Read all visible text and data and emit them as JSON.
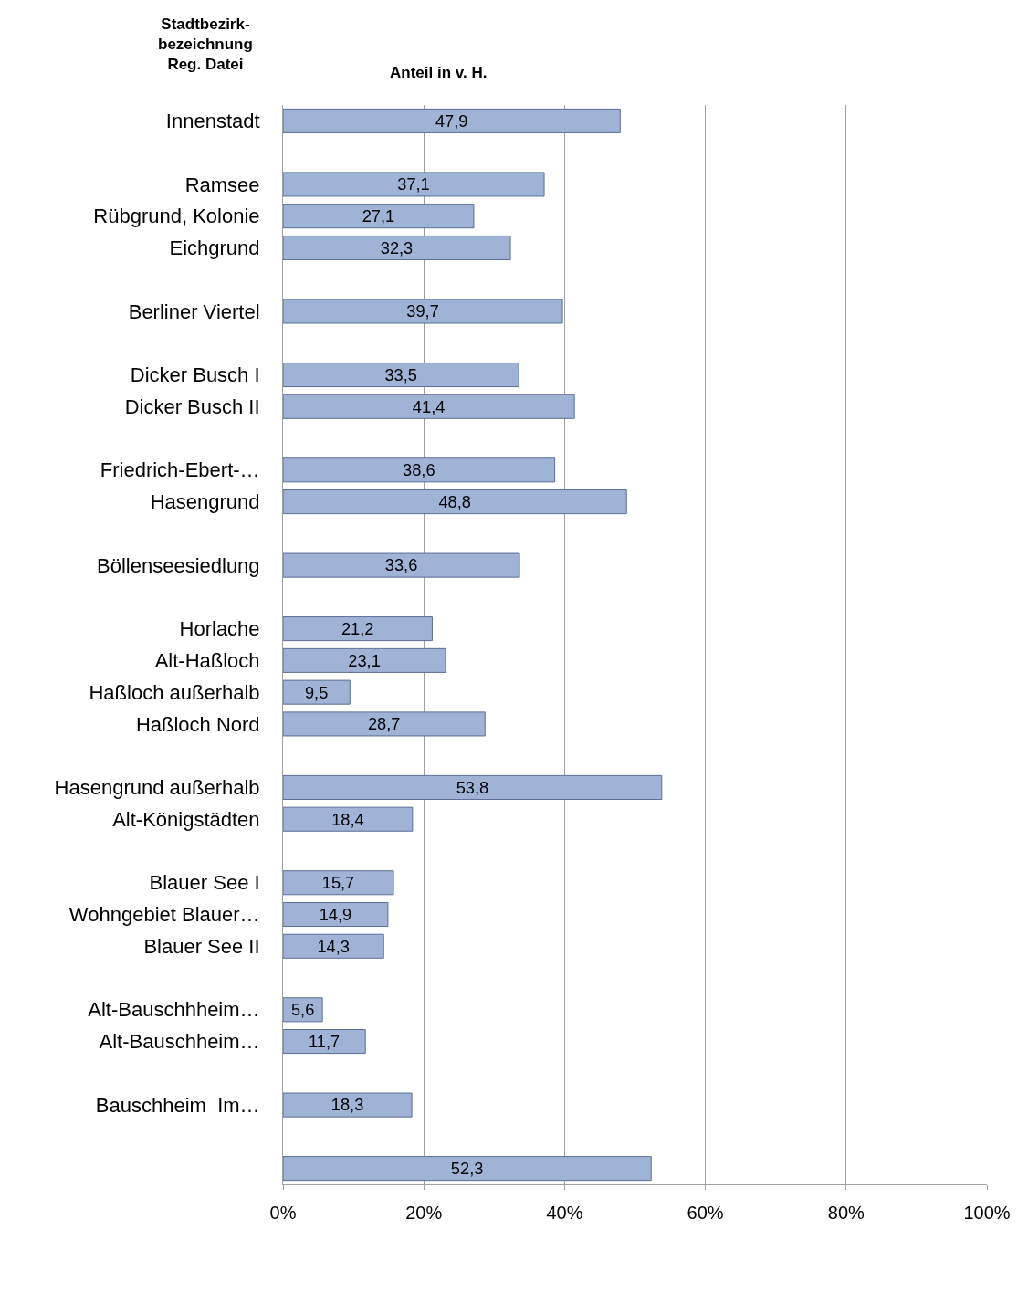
{
  "chart_data": {
    "type": "bar",
    "orientation": "horizontal",
    "ylabel": "Stadtbezirk-\nbezeichnung\nReg. Datei",
    "xlabel": "Anteil in v. H.",
    "categories": [
      "Innenstadt",
      null,
      "Ramsee",
      "Rübgrund, Kolonie",
      "Eichgrund",
      null,
      "Berliner Viertel",
      null,
      "Dicker Busch I",
      "Dicker Busch II",
      null,
      "Friedrich-Ebert-…",
      "Hasengrund",
      null,
      "Böllenseesiedlung",
      null,
      "Horlache",
      "Alt-Haßloch",
      "Haßloch außerhalb",
      "Haßloch Nord",
      null,
      "Hasengrund außerhalb",
      "Alt-Königstädten",
      null,
      "Blauer See I",
      "Wohngebiet Blauer…",
      "Blauer See II",
      null,
      "Alt-Bauschhheim…",
      "Alt-Bauschheim…",
      null,
      "Bauschheim  Im…",
      null,
      null
    ],
    "values": [
      47.9,
      null,
      37.1,
      27.1,
      32.3,
      null,
      39.7,
      null,
      33.5,
      41.4,
      null,
      38.6,
      48.8,
      null,
      33.6,
      null,
      21.2,
      23.1,
      9.5,
      28.7,
      null,
      53.8,
      18.4,
      null,
      15.7,
      14.9,
      14.3,
      null,
      5.6,
      11.7,
      null,
      18.3,
      null,
      52.3
    ],
    "value_labels": [
      "47,9",
      null,
      "37,1",
      "27,1",
      "32,3",
      null,
      "39,7",
      null,
      "33,5",
      "41,4",
      null,
      "38,6",
      "48,8",
      null,
      "33,6",
      null,
      "21,2",
      "23,1",
      "9,5",
      "28,7",
      null,
      "53,8",
      "18,4",
      null,
      "15,7",
      "14,9",
      "14,3",
      null,
      "5,6",
      "11,7",
      null,
      "18,3",
      null,
      "52,3"
    ],
    "color": "#9fb3d6",
    "xlim": [
      0,
      100
    ],
    "xticks": [
      {
        "value": 0,
        "label": "0%"
      },
      {
        "value": 20,
        "label": "20%"
      },
      {
        "value": 40,
        "label": "40%"
      },
      {
        "value": 60,
        "label": "60%"
      },
      {
        "value": 80,
        "label": "80%"
      },
      {
        "value": 100,
        "label": "100%"
      }
    ],
    "grid": "x",
    "legend": false
  }
}
